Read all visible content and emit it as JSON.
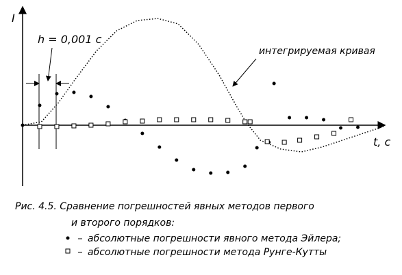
{
  "chart_data": {
    "type": "scatter",
    "ylabel": "I",
    "xlabel": "t, c",
    "annotations": [
      "h = 0,001 c",
      "интегрируемая кривая"
    ],
    "caption": [
      "Рис. 4.5. Сравнение погрешностей явных методов первого",
      "и второго порядков:"
    ],
    "xlim": [
      0,
      21.1
    ],
    "ylim": [
      -8.9,
      17.3
    ],
    "series": [
      {
        "name": "интегрируемая кривая",
        "mode": "line",
        "color": "#000000",
        "x": [
          0,
          1.1,
          2.1,
          3.1,
          4.3,
          5.5,
          6.7,
          7.9,
          9.1,
          10.3,
          11.5,
          12.5,
          13.1,
          13.9,
          15.1,
          16.3,
          17.5,
          18.7,
          19.9,
          21.1
        ],
        "values": [
          0,
          0.5,
          3.3,
          6.8,
          10.8,
          13.8,
          15.3,
          15.6,
          14.8,
          11.8,
          7.3,
          2.8,
          0.3,
          -2.2,
          -3.5,
          -3.9,
          -3.2,
          -2.2,
          -1.2,
          -0.2
        ]
      },
      {
        "name": "абсолютные погрешности явного метода Эйлера;",
        "mode": "dot",
        "color": "#000000",
        "x": [
          0,
          1,
          2,
          3,
          4,
          5,
          6,
          7,
          8,
          9,
          10,
          11,
          12,
          13,
          13.7,
          14.4,
          14.7,
          15.6,
          16.6,
          17.6,
          18.6,
          19.6
        ],
        "values": [
          0,
          2.9,
          4.6,
          4.8,
          4.2,
          2.7,
          0.7,
          -1.2,
          -3.2,
          -5.1,
          -6.5,
          -7,
          -6.9,
          -6,
          -3.3,
          -2.5,
          6.1,
          1.1,
          1.1,
          0.8,
          -0.4,
          -0.3
        ]
      },
      {
        "name": "абсолютные погрешности метода Рунге-Кутты",
        "mode": "square",
        "color": "#000000",
        "x": [
          1,
          2,
          3,
          4,
          5,
          6,
          7,
          8,
          9,
          10,
          11,
          12,
          13,
          13.3,
          14.3,
          15.3,
          16.2,
          17.2,
          18.2,
          19.2
        ],
        "values": [
          -0.2,
          -0.2,
          -0.1,
          0,
          0.2,
          0.5,
          0.6,
          0.8,
          0.8,
          0.8,
          0.8,
          0.7,
          0.5,
          0.5,
          -2.4,
          -2.5,
          -2.2,
          -1.7,
          -1.2,
          0.8
        ]
      }
    ]
  }
}
